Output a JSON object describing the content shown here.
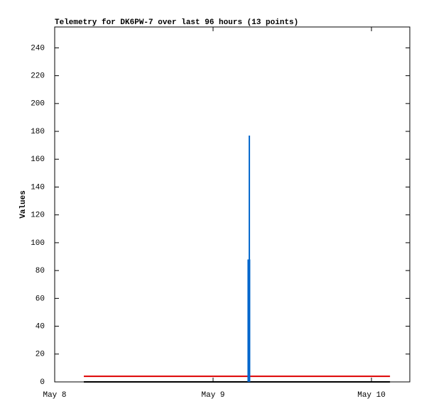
{
  "chart_data": {
    "type": "line",
    "title": "Telemetry for DK6PW-7 over last 96 hours (13 points)",
    "y_label": "Values",
    "xlim": [
      0,
      2.242
    ],
    "xticks": [
      {
        "value": 0,
        "label": "May 8"
      },
      {
        "value": 1,
        "label": "May 9"
      },
      {
        "value": 2,
        "label": "May 10"
      }
    ],
    "ylim": [
      0,
      255
    ],
    "yticks": [
      0,
      20,
      40,
      60,
      80,
      100,
      120,
      140,
      160,
      180,
      200,
      220,
      240
    ],
    "series": [
      {
        "color": "#000000",
        "width": 2,
        "x": [
          0.184,
          2.117
        ],
        "values": [
          0,
          0
        ]
      },
      {
        "color": "#dd0000",
        "width": 2,
        "x": [
          0.184,
          2.117
        ],
        "values": [
          4,
          4
        ]
      },
      {
        "color": "#0066cc",
        "width": 2,
        "x": [
          1.229,
          1.229
        ],
        "values": [
          0,
          177
        ]
      },
      {
        "color": "#0066cc",
        "width": 4,
        "x": [
          1.226,
          1.226
        ],
        "values": [
          0,
          88
        ]
      }
    ]
  }
}
